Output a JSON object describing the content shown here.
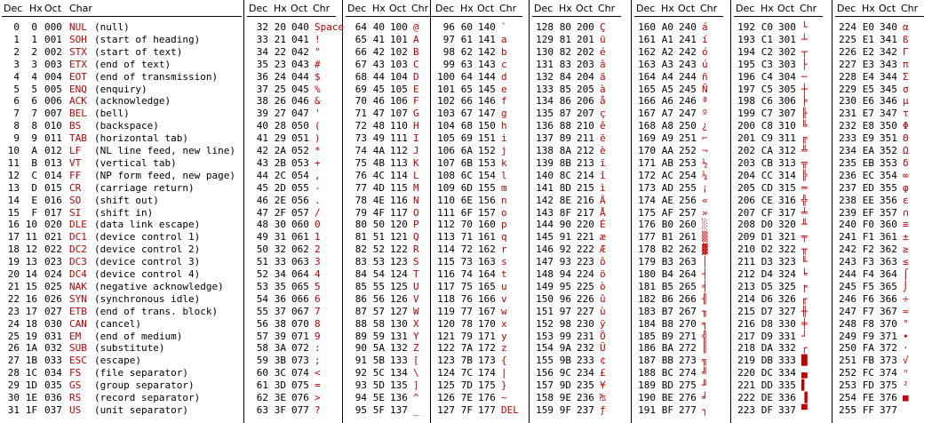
{
  "colors": {
    "accent": "#c00000",
    "text": "#000000",
    "background": "#ffffff"
  },
  "headers": {
    "c0": [
      "Dec",
      "Hx",
      "Oct",
      "Char"
    ],
    "c1": [
      "Dec",
      "Hx",
      "Oct",
      "Chr"
    ],
    "c2": [
      "Dec",
      "Hx",
      "Oct",
      "Chr"
    ],
    "c3": [
      "Dec",
      "Hx",
      "Oct",
      "Chr"
    ],
    "c4": [
      "Dec",
      "Hx",
      "Oct",
      "Chr"
    ],
    "c5": [
      "Dec",
      "Hx",
      "Oct",
      "Chr"
    ],
    "c6": [
      "Dec",
      "Hx",
      "Oct",
      "Chr"
    ],
    "c7": [
      "Dec",
      "Hx",
      "Oct",
      "Chr"
    ]
  },
  "control": [
    [
      "0",
      "0",
      "000",
      "NUL",
      "(null)"
    ],
    [
      "1",
      "1",
      "001",
      "SOH",
      "(start of heading)"
    ],
    [
      "2",
      "2",
      "002",
      "STX",
      "(start of text)"
    ],
    [
      "3",
      "3",
      "003",
      "ETX",
      "(end of text)"
    ],
    [
      "4",
      "4",
      "004",
      "EOT",
      "(end of transmission)"
    ],
    [
      "5",
      "5",
      "005",
      "ENQ",
      "(enquiry)"
    ],
    [
      "6",
      "6",
      "006",
      "ACK",
      "(acknowledge)"
    ],
    [
      "7",
      "7",
      "007",
      "BEL",
      "(bell)"
    ],
    [
      "8",
      "8",
      "010",
      "BS",
      "(backspace)"
    ],
    [
      "9",
      "9",
      "011",
      "TAB",
      "(horizontal tab)"
    ],
    [
      "10",
      "A",
      "012",
      "LF",
      "(NL line feed, new line)"
    ],
    [
      "11",
      "B",
      "013",
      "VT",
      "(vertical tab)"
    ],
    [
      "12",
      "C",
      "014",
      "FF",
      "(NP form feed, new page)"
    ],
    [
      "13",
      "D",
      "015",
      "CR",
      "(carriage return)"
    ],
    [
      "14",
      "E",
      "016",
      "SO",
      "(shift out)"
    ],
    [
      "15",
      "F",
      "017",
      "SI",
      "(shift in)"
    ],
    [
      "16",
      "10",
      "020",
      "DLE",
      "(data link escape)"
    ],
    [
      "17",
      "11",
      "021",
      "DC1",
      "(device control 1)"
    ],
    [
      "18",
      "12",
      "022",
      "DC2",
      "(device control 2)"
    ],
    [
      "19",
      "13",
      "023",
      "DC3",
      "(device control 3)"
    ],
    [
      "20",
      "14",
      "024",
      "DC4",
      "(device control 4)"
    ],
    [
      "21",
      "15",
      "025",
      "NAK",
      "(negative acknowledge)"
    ],
    [
      "22",
      "16",
      "026",
      "SYN",
      "(synchronous idle)"
    ],
    [
      "23",
      "17",
      "027",
      "ETB",
      "(end of trans. block)"
    ],
    [
      "24",
      "18",
      "030",
      "CAN",
      "(cancel)"
    ],
    [
      "25",
      "19",
      "031",
      "EM",
      "(end of medium)"
    ],
    [
      "26",
      "1A",
      "032",
      "SUB",
      "(substitute)"
    ],
    [
      "27",
      "1B",
      "033",
      "ESC",
      "(escape)"
    ],
    [
      "28",
      "1C",
      "034",
      "FS",
      "(file separator)"
    ],
    [
      "29",
      "1D",
      "035",
      "GS",
      "(group separator)"
    ],
    [
      "30",
      "1E",
      "036",
      "RS",
      "(record separator)"
    ],
    [
      "31",
      "1F",
      "037",
      "US",
      "(unit separator)"
    ]
  ],
  "columns": [
    [
      [
        "32",
        "20",
        "040",
        "Space"
      ],
      [
        "33",
        "21",
        "041",
        "!"
      ],
      [
        "34",
        "22",
        "042",
        "\""
      ],
      [
        "35",
        "23",
        "043",
        "#"
      ],
      [
        "36",
        "24",
        "044",
        "$"
      ],
      [
        "37",
        "25",
        "045",
        "%"
      ],
      [
        "38",
        "26",
        "046",
        "&"
      ],
      [
        "39",
        "27",
        "047",
        "'"
      ],
      [
        "40",
        "28",
        "050",
        "("
      ],
      [
        "41",
        "29",
        "051",
        ")"
      ],
      [
        "42",
        "2A",
        "052",
        "*"
      ],
      [
        "43",
        "2B",
        "053",
        "+"
      ],
      [
        "44",
        "2C",
        "054",
        ","
      ],
      [
        "45",
        "2D",
        "055",
        "-"
      ],
      [
        "46",
        "2E",
        "056",
        "."
      ],
      [
        "47",
        "2F",
        "057",
        "/"
      ],
      [
        "48",
        "30",
        "060",
        "0"
      ],
      [
        "49",
        "31",
        "061",
        "1"
      ],
      [
        "50",
        "32",
        "062",
        "2"
      ],
      [
        "51",
        "33",
        "063",
        "3"
      ],
      [
        "52",
        "34",
        "064",
        "4"
      ],
      [
        "53",
        "35",
        "065",
        "5"
      ],
      [
        "54",
        "36",
        "066",
        "6"
      ],
      [
        "55",
        "37",
        "067",
        "7"
      ],
      [
        "56",
        "38",
        "070",
        "8"
      ],
      [
        "57",
        "39",
        "071",
        "9"
      ],
      [
        "58",
        "3A",
        "072",
        ":"
      ],
      [
        "59",
        "3B",
        "073",
        ";"
      ],
      [
        "60",
        "3C",
        "074",
        "<"
      ],
      [
        "61",
        "3D",
        "075",
        "="
      ],
      [
        "62",
        "3E",
        "076",
        ">"
      ],
      [
        "63",
        "3F",
        "077",
        "?"
      ]
    ],
    [
      [
        "64",
        "40",
        "100",
        "@"
      ],
      [
        "65",
        "41",
        "101",
        "A"
      ],
      [
        "66",
        "42",
        "102",
        "B"
      ],
      [
        "67",
        "43",
        "103",
        "C"
      ],
      [
        "68",
        "44",
        "104",
        "D"
      ],
      [
        "69",
        "45",
        "105",
        "E"
      ],
      [
        "70",
        "46",
        "106",
        "F"
      ],
      [
        "71",
        "47",
        "107",
        "G"
      ],
      [
        "72",
        "48",
        "110",
        "H"
      ],
      [
        "73",
        "49",
        "111",
        "I"
      ],
      [
        "74",
        "4A",
        "112",
        "J"
      ],
      [
        "75",
        "4B",
        "113",
        "K"
      ],
      [
        "76",
        "4C",
        "114",
        "L"
      ],
      [
        "77",
        "4D",
        "115",
        "M"
      ],
      [
        "78",
        "4E",
        "116",
        "N"
      ],
      [
        "79",
        "4F",
        "117",
        "O"
      ],
      [
        "80",
        "50",
        "120",
        "P"
      ],
      [
        "81",
        "51",
        "121",
        "Q"
      ],
      [
        "82",
        "52",
        "122",
        "R"
      ],
      [
        "83",
        "53",
        "123",
        "S"
      ],
      [
        "84",
        "54",
        "124",
        "T"
      ],
      [
        "85",
        "55",
        "125",
        "U"
      ],
      [
        "86",
        "56",
        "126",
        "V"
      ],
      [
        "87",
        "57",
        "127",
        "W"
      ],
      [
        "88",
        "58",
        "130",
        "X"
      ],
      [
        "89",
        "59",
        "131",
        "Y"
      ],
      [
        "90",
        "5A",
        "132",
        "Z"
      ],
      [
        "91",
        "5B",
        "133",
        "["
      ],
      [
        "92",
        "5C",
        "134",
        "\\"
      ],
      [
        "93",
        "5D",
        "135",
        "]"
      ],
      [
        "94",
        "5E",
        "136",
        "^"
      ],
      [
        "95",
        "5F",
        "137",
        "_"
      ]
    ],
    [
      [
        "96",
        "60",
        "140",
        "`"
      ],
      [
        "97",
        "61",
        "141",
        "a"
      ],
      [
        "98",
        "62",
        "142",
        "b"
      ],
      [
        "99",
        "63",
        "143",
        "c"
      ],
      [
        "100",
        "64",
        "144",
        "d"
      ],
      [
        "101",
        "65",
        "145",
        "e"
      ],
      [
        "102",
        "66",
        "146",
        "f"
      ],
      [
        "103",
        "67",
        "147",
        "g"
      ],
      [
        "104",
        "68",
        "150",
        "h"
      ],
      [
        "105",
        "69",
        "151",
        "i"
      ],
      [
        "106",
        "6A",
        "152",
        "j"
      ],
      [
        "107",
        "6B",
        "153",
        "k"
      ],
      [
        "108",
        "6C",
        "154",
        "l"
      ],
      [
        "109",
        "6D",
        "155",
        "m"
      ],
      [
        "110",
        "6E",
        "156",
        "n"
      ],
      [
        "111",
        "6F",
        "157",
        "o"
      ],
      [
        "112",
        "70",
        "160",
        "p"
      ],
      [
        "113",
        "71",
        "161",
        "q"
      ],
      [
        "114",
        "72",
        "162",
        "r"
      ],
      [
        "115",
        "73",
        "163",
        "s"
      ],
      [
        "116",
        "74",
        "164",
        "t"
      ],
      [
        "117",
        "75",
        "165",
        "u"
      ],
      [
        "118",
        "76",
        "166",
        "v"
      ],
      [
        "119",
        "77",
        "167",
        "w"
      ],
      [
        "120",
        "78",
        "170",
        "x"
      ],
      [
        "121",
        "79",
        "171",
        "y"
      ],
      [
        "122",
        "7A",
        "172",
        "z"
      ],
      [
        "123",
        "7B",
        "173",
        "{"
      ],
      [
        "124",
        "7C",
        "174",
        "|"
      ],
      [
        "125",
        "7D",
        "175",
        "}"
      ],
      [
        "126",
        "7E",
        "176",
        "~"
      ],
      [
        "127",
        "7F",
        "177",
        "DEL"
      ]
    ],
    [
      [
        "128",
        "80",
        "200",
        "Ç"
      ],
      [
        "129",
        "81",
        "201",
        "ü"
      ],
      [
        "130",
        "82",
        "202",
        "é"
      ],
      [
        "131",
        "83",
        "203",
        "â"
      ],
      [
        "132",
        "84",
        "204",
        "ä"
      ],
      [
        "133",
        "85",
        "205",
        "à"
      ],
      [
        "134",
        "86",
        "206",
        "å"
      ],
      [
        "135",
        "87",
        "207",
        "ç"
      ],
      [
        "136",
        "88",
        "210",
        "ê"
      ],
      [
        "137",
        "89",
        "211",
        "ë"
      ],
      [
        "138",
        "8A",
        "212",
        "è"
      ],
      [
        "139",
        "8B",
        "213",
        "ï"
      ],
      [
        "140",
        "8C",
        "214",
        "î"
      ],
      [
        "141",
        "8D",
        "215",
        "ì"
      ],
      [
        "142",
        "8E",
        "216",
        "Ä"
      ],
      [
        "143",
        "8F",
        "217",
        "Å"
      ],
      [
        "144",
        "90",
        "220",
        "É"
      ],
      [
        "145",
        "91",
        "221",
        "æ"
      ],
      [
        "146",
        "92",
        "222",
        "Æ"
      ],
      [
        "147",
        "93",
        "223",
        "ô"
      ],
      [
        "148",
        "94",
        "224",
        "ö"
      ],
      [
        "149",
        "95",
        "225",
        "ò"
      ],
      [
        "150",
        "96",
        "226",
        "û"
      ],
      [
        "151",
        "97",
        "227",
        "ù"
      ],
      [
        "152",
        "98",
        "230",
        "ÿ"
      ],
      [
        "153",
        "99",
        "231",
        "Ö"
      ],
      [
        "154",
        "9A",
        "232",
        "Ü"
      ],
      [
        "155",
        "9B",
        "233",
        "¢"
      ],
      [
        "156",
        "9C",
        "234",
        "£"
      ],
      [
        "157",
        "9D",
        "235",
        "¥"
      ],
      [
        "158",
        "9E",
        "236",
        "₧"
      ],
      [
        "159",
        "9F",
        "237",
        "ƒ"
      ]
    ],
    [
      [
        "160",
        "A0",
        "240",
        "á"
      ],
      [
        "161",
        "A1",
        "241",
        "í"
      ],
      [
        "162",
        "A2",
        "242",
        "ó"
      ],
      [
        "163",
        "A3",
        "243",
        "ú"
      ],
      [
        "164",
        "A4",
        "244",
        "ñ"
      ],
      [
        "165",
        "A5",
        "245",
        "Ñ"
      ],
      [
        "166",
        "A6",
        "246",
        "ª"
      ],
      [
        "167",
        "A7",
        "247",
        "º"
      ],
      [
        "168",
        "A8",
        "250",
        "¿"
      ],
      [
        "169",
        "A9",
        "251",
        "⌐"
      ],
      [
        "170",
        "AA",
        "252",
        "¬"
      ],
      [
        "171",
        "AB",
        "253",
        "½"
      ],
      [
        "172",
        "AC",
        "254",
        "¼"
      ],
      [
        "173",
        "AD",
        "255",
        "¡"
      ],
      [
        "174",
        "AE",
        "256",
        "«"
      ],
      [
        "175",
        "AF",
        "257",
        "»"
      ],
      [
        "176",
        "B0",
        "260",
        "░"
      ],
      [
        "177",
        "B1",
        "261",
        "▒"
      ],
      [
        "178",
        "B2",
        "262",
        "▓"
      ],
      [
        "179",
        "B3",
        "263",
        "│"
      ],
      [
        "180",
        "B4",
        "264",
        "┤"
      ],
      [
        "181",
        "B5",
        "265",
        "╡"
      ],
      [
        "182",
        "B6",
        "266",
        "╢"
      ],
      [
        "183",
        "B7",
        "267",
        "╖"
      ],
      [
        "184",
        "B8",
        "270",
        "╕"
      ],
      [
        "185",
        "B9",
        "271",
        "╣"
      ],
      [
        "186",
        "BA",
        "272",
        "║"
      ],
      [
        "187",
        "BB",
        "273",
        "╗"
      ],
      [
        "188",
        "BC",
        "274",
        "╝"
      ],
      [
        "189",
        "BD",
        "275",
        "╜"
      ],
      [
        "190",
        "BE",
        "276",
        "╛"
      ],
      [
        "191",
        "BF",
        "277",
        "┐"
      ]
    ],
    [
      [
        "192",
        "C0",
        "300",
        "└"
      ],
      [
        "193",
        "C1",
        "301",
        "┴"
      ],
      [
        "194",
        "C2",
        "302",
        "┬"
      ],
      [
        "195",
        "C3",
        "303",
        "├"
      ],
      [
        "196",
        "C4",
        "304",
        "─"
      ],
      [
        "197",
        "C5",
        "305",
        "┼"
      ],
      [
        "198",
        "C6",
        "306",
        "╞"
      ],
      [
        "199",
        "C7",
        "307",
        "╟"
      ],
      [
        "200",
        "C8",
        "310",
        "╚"
      ],
      [
        "201",
        "C9",
        "311",
        "╔"
      ],
      [
        "202",
        "CA",
        "312",
        "╩"
      ],
      [
        "203",
        "CB",
        "313",
        "╦"
      ],
      [
        "204",
        "CC",
        "314",
        "╠"
      ],
      [
        "205",
        "CD",
        "315",
        "═"
      ],
      [
        "206",
        "CE",
        "316",
        "╬"
      ],
      [
        "207",
        "CF",
        "317",
        "╧"
      ],
      [
        "208",
        "D0",
        "320",
        "╨"
      ],
      [
        "209",
        "D1",
        "321",
        "╤"
      ],
      [
        "210",
        "D2",
        "322",
        "╥"
      ],
      [
        "211",
        "D3",
        "323",
        "╙"
      ],
      [
        "212",
        "D4",
        "324",
        "╘"
      ],
      [
        "213",
        "D5",
        "325",
        "╒"
      ],
      [
        "214",
        "D6",
        "326",
        "╓"
      ],
      [
        "215",
        "D7",
        "327",
        "╫"
      ],
      [
        "216",
        "D8",
        "330",
        "╪"
      ],
      [
        "217",
        "D9",
        "331",
        "┘"
      ],
      [
        "218",
        "DA",
        "332",
        "┌"
      ],
      [
        "219",
        "DB",
        "333",
        "█"
      ],
      [
        "220",
        "DC",
        "334",
        "▄"
      ],
      [
        "221",
        "DD",
        "335",
        "▌"
      ],
      [
        "222",
        "DE",
        "336",
        "▐"
      ],
      [
        "223",
        "DF",
        "337",
        "▀"
      ]
    ],
    [
      [
        "224",
        "E0",
        "340",
        "α"
      ],
      [
        "225",
        "E1",
        "341",
        "ß"
      ],
      [
        "226",
        "E2",
        "342",
        "Γ"
      ],
      [
        "227",
        "E3",
        "343",
        "π"
      ],
      [
        "228",
        "E4",
        "344",
        "Σ"
      ],
      [
        "229",
        "E5",
        "345",
        "σ"
      ],
      [
        "230",
        "E6",
        "346",
        "µ"
      ],
      [
        "231",
        "E7",
        "347",
        "τ"
      ],
      [
        "232",
        "E8",
        "350",
        "Φ"
      ],
      [
        "233",
        "E9",
        "351",
        "Θ"
      ],
      [
        "234",
        "EA",
        "352",
        "Ω"
      ],
      [
        "235",
        "EB",
        "353",
        "δ"
      ],
      [
        "236",
        "EC",
        "354",
        "∞"
      ],
      [
        "237",
        "ED",
        "355",
        "φ"
      ],
      [
        "238",
        "EE",
        "356",
        "ε"
      ],
      [
        "239",
        "EF",
        "357",
        "∩"
      ],
      [
        "240",
        "F0",
        "360",
        "≡"
      ],
      [
        "241",
        "F1",
        "361",
        "±"
      ],
      [
        "242",
        "F2",
        "362",
        "≥"
      ],
      [
        "243",
        "F3",
        "363",
        "≤"
      ],
      [
        "244",
        "F4",
        "364",
        "⌠"
      ],
      [
        "245",
        "F5",
        "365",
        "⌡"
      ],
      [
        "246",
        "F6",
        "366",
        "÷"
      ],
      [
        "247",
        "F7",
        "367",
        "≈"
      ],
      [
        "248",
        "F8",
        "370",
        "°"
      ],
      [
        "249",
        "F9",
        "371",
        "∙"
      ],
      [
        "250",
        "FA",
        "372",
        "·"
      ],
      [
        "251",
        "FB",
        "373",
        "√"
      ],
      [
        "252",
        "FC",
        "374",
        "ⁿ"
      ],
      [
        "253",
        "FD",
        "375",
        "²"
      ],
      [
        "254",
        "FE",
        "376",
        "■"
      ],
      [
        "255",
        "FF",
        "377",
        " "
      ]
    ]
  ]
}
